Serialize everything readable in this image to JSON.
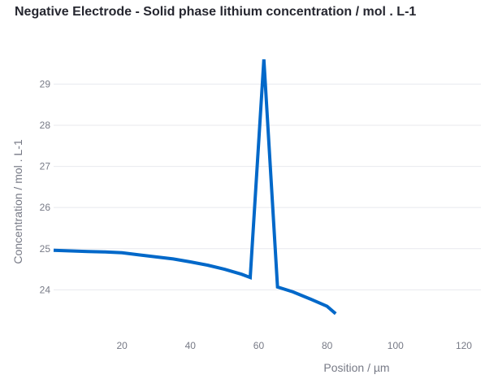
{
  "chart_data": {
    "type": "line",
    "title": "Negative Electrode - Solid phase lithium concentration  /  mol . L-1",
    "xlabel": "Position  /  µm",
    "ylabel": "Concentration  /  mol . L-1",
    "xlim": [
      0,
      125
    ],
    "ylim": [
      23,
      29.6
    ],
    "xticks": [
      20,
      40,
      60,
      80,
      100,
      120
    ],
    "yticks": [
      24,
      25,
      26,
      27,
      28,
      29
    ],
    "grid": true,
    "series": [
      {
        "color": "#0068c9",
        "x": [
          0,
          10,
          15,
          20,
          25,
          30,
          35,
          40,
          45,
          50,
          55,
          57.5,
          61.5,
          65.5,
          70,
          75,
          80,
          82.5
        ],
        "y": [
          24.96,
          24.93,
          24.92,
          24.9,
          24.85,
          24.8,
          24.75,
          24.68,
          24.6,
          24.5,
          24.38,
          24.3,
          29.6,
          24.07,
          23.95,
          23.78,
          23.6,
          23.42
        ]
      }
    ]
  }
}
